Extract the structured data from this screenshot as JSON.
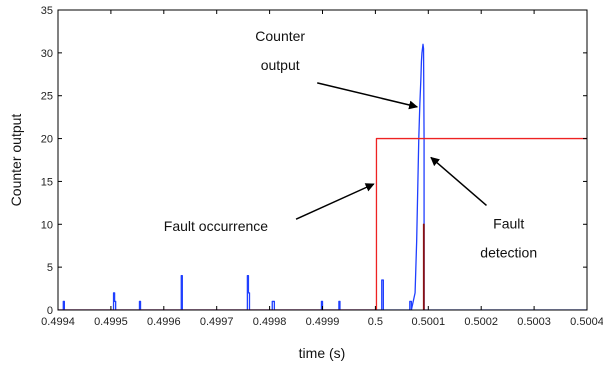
{
  "chart_data": {
    "type": "line",
    "xlabel": "time (s)",
    "ylabel": "Counter output",
    "xlim": [
      0.4994,
      0.5004
    ],
    "ylim": [
      0,
      35
    ],
    "x_ticks": [
      0.4994,
      0.4995,
      0.4996,
      0.4997,
      0.4998,
      0.4999,
      0.5,
      0.5001,
      0.5002,
      0.5003,
      0.5004
    ],
    "x_tick_labels": [
      "0.4994",
      "0.4995",
      "0.4996",
      "0.4997",
      "0.4998",
      "0.4999",
      "0.5",
      "0.5001",
      "0.5002",
      "0.5003",
      "0.5004"
    ],
    "y_ticks": [
      0,
      5,
      10,
      15,
      20,
      25,
      30,
      35
    ],
    "y_tick_labels": [
      "0",
      "5",
      "10",
      "15",
      "20",
      "25",
      "30",
      "35"
    ],
    "grid": false,
    "legend": "none",
    "series": [
      {
        "color": "#1f3fff",
        "x": [
          0.4994,
          0.49941,
          0.49941,
          0.499412,
          0.499412,
          0.499505,
          0.499505,
          0.499507,
          0.499507,
          0.499509,
          0.499509,
          0.499554,
          0.499554,
          0.499556,
          0.499556,
          0.499633,
          0.499633,
          0.499635,
          0.499635,
          0.499758,
          0.499758,
          0.49976,
          0.49976,
          0.499762,
          0.499762,
          0.499805,
          0.499805,
          0.499807,
          0.499807,
          0.499809,
          0.499809,
          0.499898,
          0.499898,
          0.4999,
          0.4999,
          0.499931,
          0.499931,
          0.499933,
          0.499933,
          0.500012,
          0.500012,
          0.500015,
          0.500015,
          0.500065,
          0.500065,
          0.500068,
          0.500068,
          0.500075,
          0.500078,
          0.50008,
          0.500082,
          0.500084,
          0.500086,
          0.500087,
          0.500088,
          0.50009,
          0.500091,
          0.500092,
          0.500092,
          0.5004
        ],
        "y": [
          0,
          0,
          1,
          1,
          0,
          0,
          2,
          2,
          1,
          1,
          0,
          0,
          1,
          1,
          0,
          0,
          4,
          4,
          0,
          0,
          4,
          4,
          2,
          2,
          0,
          0,
          1,
          1,
          1,
          1,
          0,
          0,
          1,
          1,
          0,
          0,
          1,
          1,
          0,
          0,
          3.5,
          3.5,
          0,
          0,
          1,
          1,
          0,
          2,
          8,
          14,
          20,
          24,
          27,
          29,
          30,
          31,
          30.5,
          20,
          0,
          0
        ]
      },
      {
        "color": "#ee2222",
        "x": [
          0.4994,
          0.500002,
          0.500002,
          0.5004
        ],
        "y": [
          0,
          0,
          20,
          20
        ]
      },
      {
        "color": "#8a1010",
        "x": [
          0.500091,
          0.500091,
          0.500092,
          0.500092
        ],
        "y": [
          0,
          10,
          10,
          0
        ]
      }
    ],
    "annotations": [
      {
        "lines": [
          "Counter",
          "output"
        ],
        "anchor": "middle",
        "text_x": 0.49982,
        "text_y": 31.4,
        "arrow_from": [
          0.49989,
          26.5
        ],
        "arrow_to": [
          0.500079,
          23.7
        ]
      },
      {
        "lines": [
          "Fault occurrence"
        ],
        "anchor": "start",
        "text_x": 0.4996,
        "text_y": 9.2,
        "arrow_from": [
          0.49985,
          10.6
        ],
        "arrow_to": [
          0.499997,
          14.7
        ]
      },
      {
        "lines": [
          "Fault",
          "detection"
        ],
        "anchor": "middle",
        "text_x": 0.500252,
        "text_y": 9.5,
        "arrow_from": [
          0.50021,
          12.2
        ],
        "arrow_to": [
          0.500105,
          17.8
        ]
      }
    ]
  }
}
